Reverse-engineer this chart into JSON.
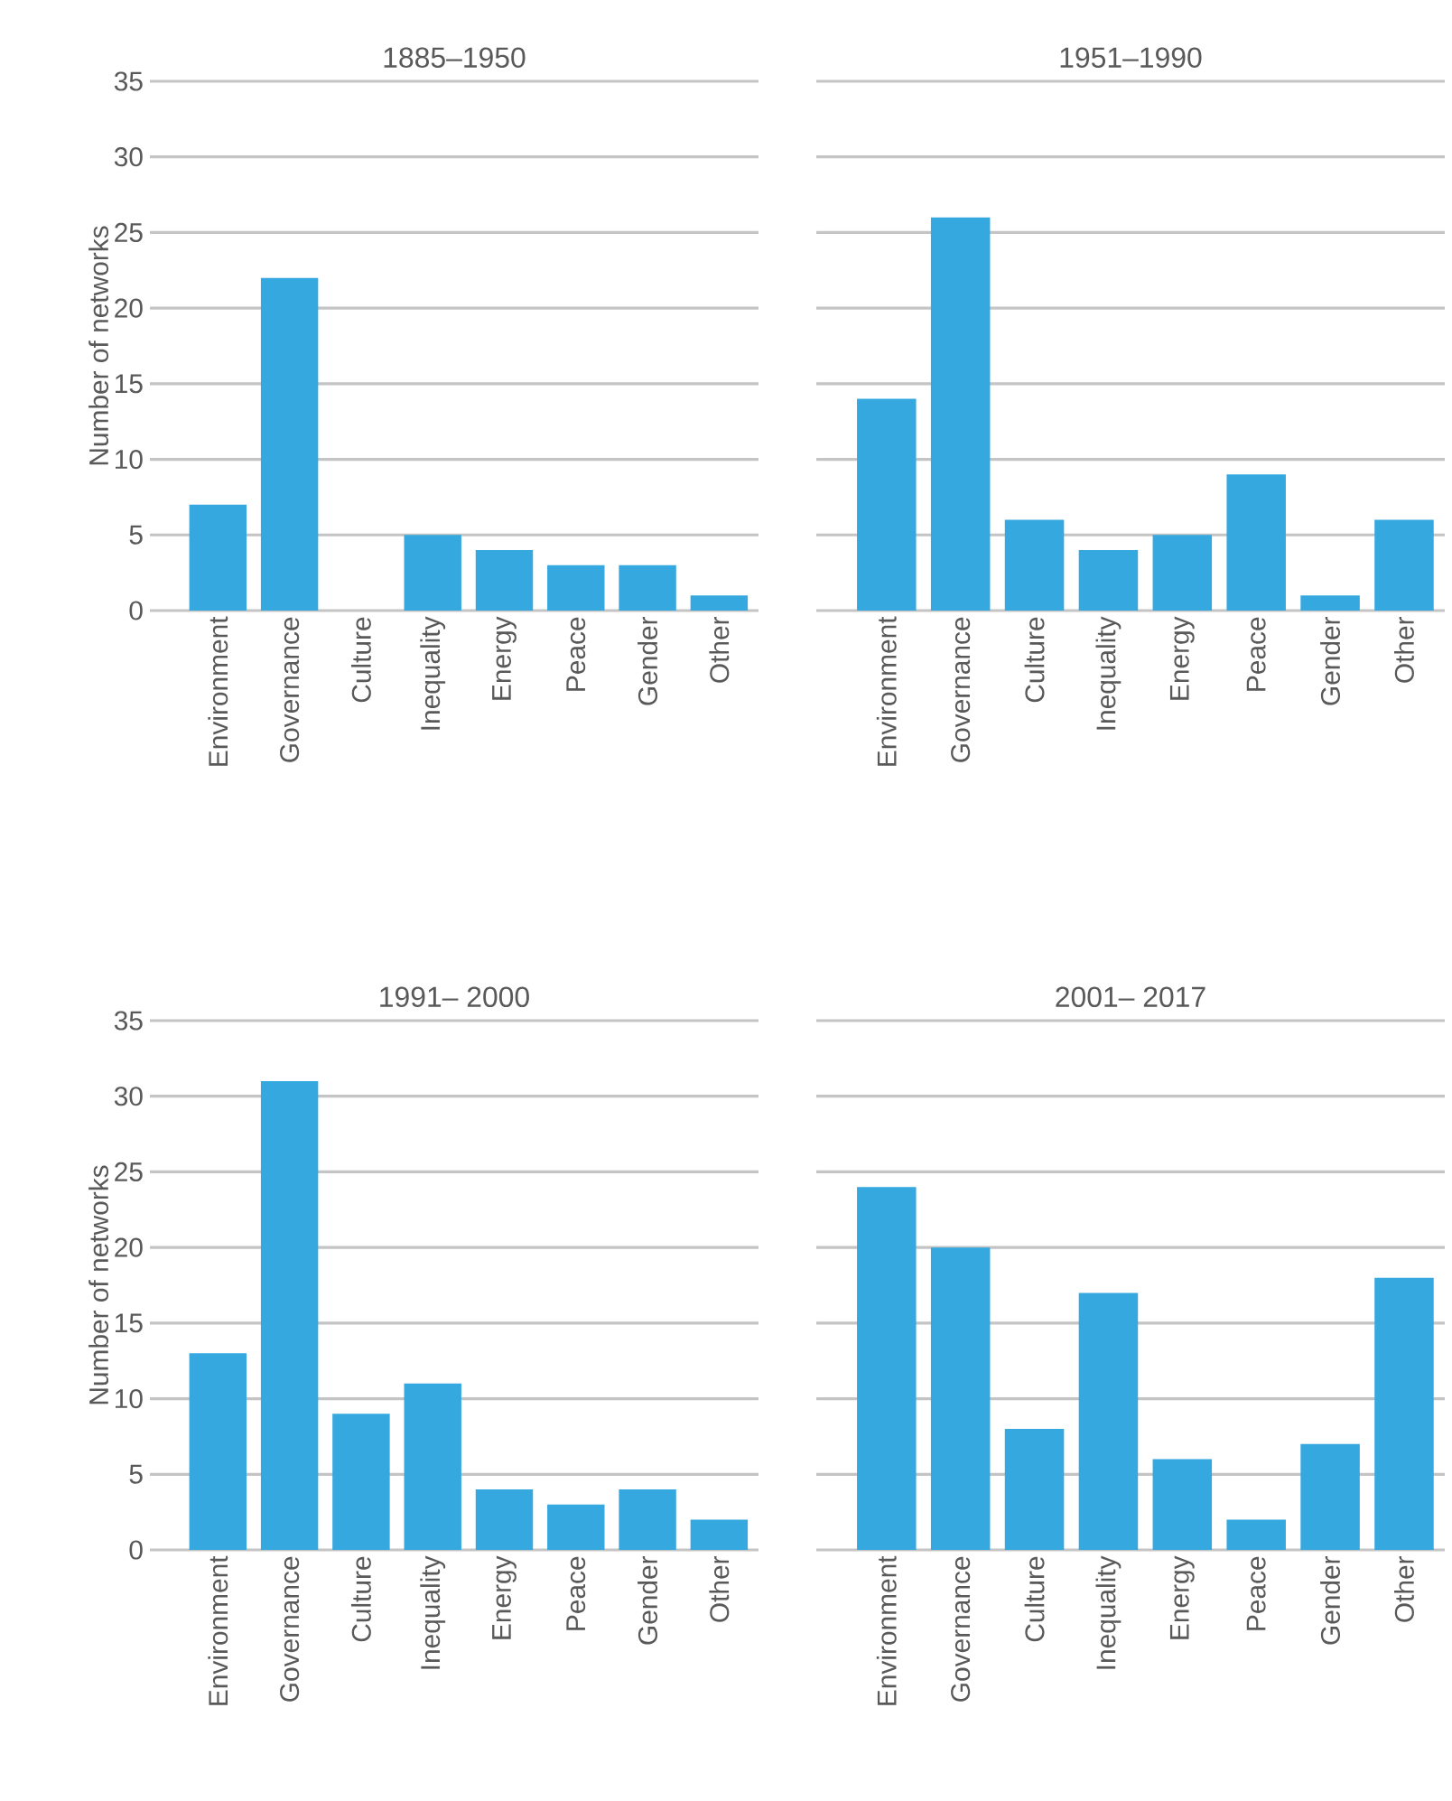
{
  "chart_data": [
    {
      "type": "bar",
      "title": "1885–1950",
      "ylabel": "Number of networks",
      "categories": [
        "Environment",
        "Governance",
        "Culture",
        "Inequality",
        "Energy",
        "Peace",
        "Gender",
        "Other"
      ],
      "values": [
        7,
        22,
        0,
        5,
        4,
        3,
        3,
        1
      ],
      "color": "#35a8e0",
      "ylim": [
        0,
        35
      ],
      "yticks": [
        0,
        5,
        10,
        15,
        20,
        25,
        30,
        35
      ],
      "grid": "y"
    },
    {
      "type": "bar",
      "title": "1951–1990",
      "categories": [
        "Environment",
        "Governance",
        "Culture",
        "Inequality",
        "Energy",
        "Peace",
        "Gender",
        "Other"
      ],
      "values": [
        14,
        26,
        6,
        4,
        5,
        9,
        1,
        6
      ],
      "color": "#35a8e0",
      "ylim": [
        0,
        35
      ],
      "yticks": [
        0,
        5,
        10,
        15,
        20,
        25,
        30,
        35
      ],
      "grid": "y",
      "tick_labels": "x"
    },
    {
      "type": "bar",
      "title": "1991– 2000",
      "ylabel": "Number of networks",
      "categories": [
        "Environment",
        "Governance",
        "Culture",
        "Inequality",
        "Energy",
        "Peace",
        "Gender",
        "Other"
      ],
      "values": [
        13,
        31,
        9,
        11,
        4,
        3,
        4,
        2
      ],
      "color": "#35a8e0",
      "ylim": [
        0,
        35
      ],
      "yticks": [
        0,
        5,
        10,
        15,
        20,
        25,
        30,
        35
      ],
      "grid": "y"
    },
    {
      "type": "bar",
      "title": "2001– 2017",
      "categories": [
        "Environment",
        "Governance",
        "Culture",
        "Inequality",
        "Energy",
        "Peace",
        "Gender",
        "Other"
      ],
      "values": [
        24,
        20,
        8,
        17,
        6,
        2,
        7,
        18
      ],
      "color": "#35a8e0",
      "ylim": [
        0,
        35
      ],
      "yticks": [
        0,
        5,
        10,
        15,
        20,
        25,
        30,
        35
      ],
      "grid": "y",
      "tick_labels": "x"
    }
  ]
}
